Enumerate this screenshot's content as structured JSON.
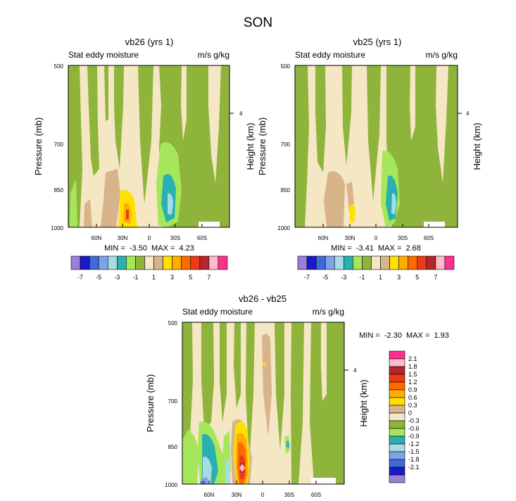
{
  "title": "SON",
  "chart_data": [
    {
      "type": "heatmap",
      "title": "vb26 (yrs 1)",
      "left_label": "Stat eddy moisture",
      "right_label": "m/s g/kg",
      "ylabel": "Pressure (mb)",
      "y2label": "Height (km)",
      "y_ticks": [
        "500",
        "700",
        "850",
        "1000"
      ],
      "y2_ticks": [
        "4"
      ],
      "x_ticks": [
        "60N",
        "30N",
        "0",
        "30S",
        "60S"
      ],
      "min_max": "MIN =  -3.50  MAX =  4.23"
    },
    {
      "type": "heatmap",
      "title": "vb25 (yrs 1)",
      "left_label": "Stat eddy moisture",
      "right_label": "m/s g/kg",
      "ylabel": "Pressure (mb)",
      "y2label": "Height (km)",
      "y_ticks": [
        "500",
        "700",
        "850",
        "1000"
      ],
      "y2_ticks": [
        "4"
      ],
      "x_ticks": [
        "60N",
        "30N",
        "0",
        "30S",
        "60S"
      ],
      "min_max": "MIN =  -3.41  MAX =  2.68"
    },
    {
      "type": "heatmap",
      "title": "vb26 - vb25",
      "left_label": "Stat eddy moisture",
      "right_label": "m/s g/kg",
      "ylabel": "Pressure (mb)",
      "y2label": "Height (km)",
      "y_ticks": [
        "500",
        "700",
        "850",
        "1000"
      ],
      "y2_ticks": [
        "4"
      ],
      "x_ticks": [
        "60N",
        "30N",
        "0",
        "30S",
        "60S"
      ],
      "min_max": "MIN =  -2.30  MAX =  1.93"
    }
  ],
  "top_colorbar": {
    "labels": [
      "-7",
      "-5",
      "-3",
      "-1",
      "1",
      "3",
      "5",
      "7"
    ],
    "colors": [
      "#9b7fd8",
      "#1a1acb",
      "#3e6bd6",
      "#7fa3ea",
      "#a8dbe3",
      "#2ab0b0",
      "#a6e65a",
      "#8fb43c",
      "#f5e6c4",
      "#d8b48a",
      "#ffe000",
      "#ffae00",
      "#ff6a00",
      "#ee3a1a",
      "#b3262b",
      "#ffbbcc",
      "#ff2f8e"
    ]
  },
  "diff_colorbar": {
    "labels": [
      "2.1",
      "1.8",
      "1.5",
      "1.2",
      "0.9",
      "0.6",
      "0.3",
      "0",
      "-0.3",
      "-0.6",
      "-0.9",
      "-1.2",
      "-1.5",
      "-1.8",
      "-2.1"
    ],
    "colors": [
      "#ff2f8e",
      "#ffbbcc",
      "#b3262b",
      "#ee3a1a",
      "#ff6a00",
      "#ffae00",
      "#ffe000",
      "#d8b48a",
      "#f5e6c4",
      "#8fb43c",
      "#a6e65a",
      "#2ab0b0",
      "#a8dbe3",
      "#7fa3ea",
      "#3e6bd6",
      "#1a1acb",
      "#9b7fd8"
    ]
  }
}
